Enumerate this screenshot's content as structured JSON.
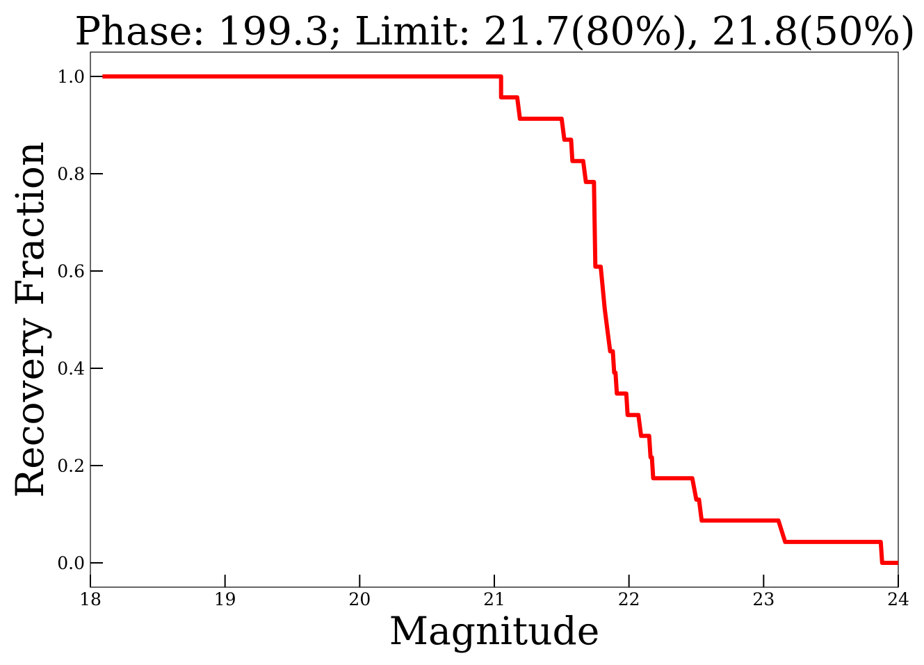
{
  "chart_data": {
    "type": "line",
    "title": "Phase: 199.3; Limit: 21.7(80%), 21.8(50%)",
    "xlabel": "Magnitude",
    "ylabel": "Recovery Fraction",
    "xlim": [
      18,
      24
    ],
    "ylim": [
      -0.05,
      1.05
    ],
    "x_ticks": [
      18,
      19,
      20,
      21,
      22,
      23,
      24
    ],
    "x_tick_labels": [
      "18",
      "19",
      "20",
      "21",
      "22",
      "23",
      "24"
    ],
    "y_ticks": [
      0.0,
      0.2,
      0.4,
      0.6,
      0.8,
      1.0
    ],
    "y_tick_labels": [
      "0.0",
      "0.2",
      "0.4",
      "0.6",
      "0.8",
      "1.0"
    ],
    "grid": false,
    "series": [
      {
        "color": "#ff0000",
        "x": [
          18.09,
          21.05,
          21.05,
          21.17,
          21.19,
          21.5,
          21.52,
          21.57,
          21.58,
          21.66,
          21.68,
          21.74,
          21.75,
          21.76,
          21.79,
          21.82,
          21.84,
          21.86,
          21.88,
          21.89,
          21.9,
          21.91,
          21.92,
          21.98,
          21.99,
          22.07,
          22.09,
          22.15,
          22.16,
          22.17,
          22.18,
          22.47,
          22.5,
          22.52,
          22.54,
          23.11,
          23.16,
          23.87,
          23.88,
          24.0
        ],
        "y": [
          1.0,
          1.0,
          0.957,
          0.957,
          0.913,
          0.913,
          0.87,
          0.87,
          0.826,
          0.826,
          0.783,
          0.783,
          0.609,
          0.609,
          0.609,
          0.522,
          0.478,
          0.435,
          0.435,
          0.391,
          0.391,
          0.348,
          0.348,
          0.348,
          0.304,
          0.304,
          0.261,
          0.261,
          0.217,
          0.217,
          0.174,
          0.174,
          0.13,
          0.13,
          0.087,
          0.087,
          0.043,
          0.043,
          0.0,
          0.0
        ]
      }
    ]
  }
}
